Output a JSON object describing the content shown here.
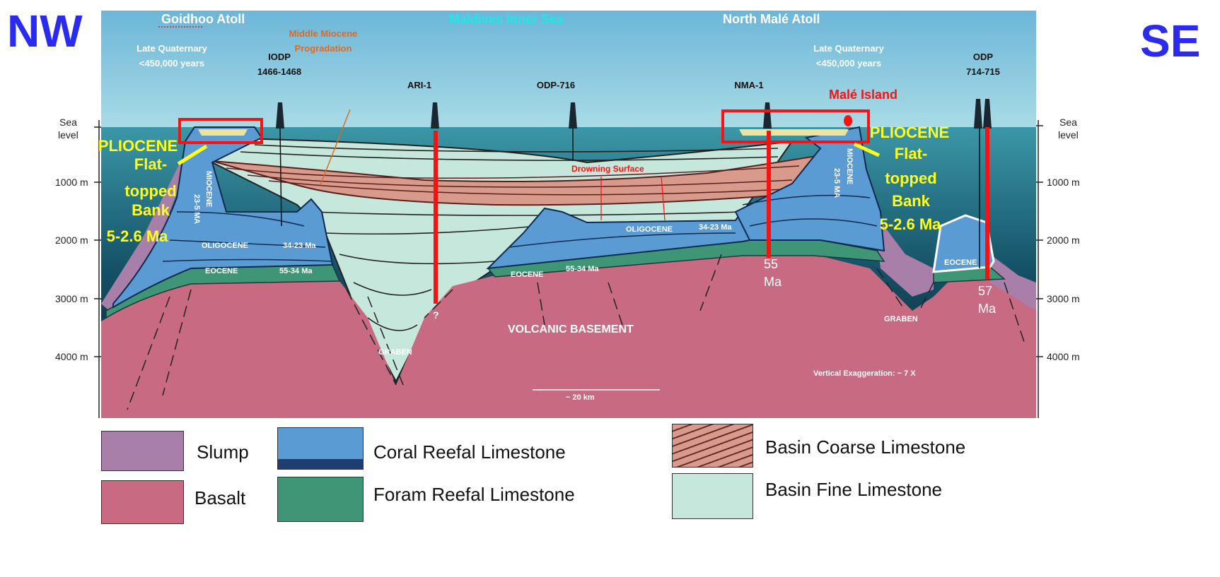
{
  "directions": {
    "left": "NW",
    "right": "SE"
  },
  "places": {
    "left_atoll": "Goidhoo Atoll",
    "inner_sea": "Maldives Inner Sea",
    "right_atoll": "North Malé Atoll",
    "island": "Malé Island"
  },
  "annotations": {
    "late_quaternary_left": [
      "Late Quaternary",
      "<450,000 years"
    ],
    "late_quaternary_right": [
      "Late Quaternary",
      "<450,000 years"
    ],
    "progradation": [
      "Middle Miocene",
      "Progradation"
    ],
    "drowning": "Drowning Surface",
    "pliocene_left": [
      "PLIOCENE",
      "Flat-",
      "topped",
      "Bank",
      "5-2.6 Ma"
    ],
    "pliocene_right": [
      "PLIOCENE",
      "Flat-",
      "topped",
      "Bank",
      "5-2.6 Ma"
    ],
    "miocene": "MIOCENE",
    "miocene_age": "23-5 MA",
    "oligocene": "OLIGOCENE",
    "oligocene_age": "34-23 Ma",
    "eocene": "EOCENE",
    "eocene_age": "55-34 Ma",
    "graben": "GRABEN",
    "basement": "VOLCANIC BASEMENT",
    "exaggeration": "Vertical Exaggeration: ~ 7 X",
    "scale": "~ 20 km",
    "question": "?",
    "age_nma": [
      "55",
      "Ma"
    ],
    "age_odp": [
      "57",
      "Ma"
    ]
  },
  "wells": [
    "IODP",
    "1466-1468",
    "ARI-1",
    "ODP-716",
    "NMA-1",
    "ODP",
    "714-715"
  ],
  "depth_axis": {
    "sea_level": [
      "Sea",
      "level"
    ],
    "ticks": [
      "1000 m",
      "2000 m",
      "3000 m",
      "4000 m"
    ]
  },
  "legend": [
    {
      "label": "Slump",
      "color": "#a77fa8"
    },
    {
      "label": "Basalt",
      "color": "#c96a83"
    },
    {
      "label": "Coral Reefal Limestone",
      "color": "#5a9bd4"
    },
    {
      "label": "Foram Reefal Limestone",
      "color": "#3f9677"
    },
    {
      "label": "Basin Coarse Limestone",
      "color": "#d89a8a"
    },
    {
      "label": "Basin Fine Limestone",
      "color": "#c6e8dc"
    }
  ],
  "colors": {
    "highlight": "#ff1010",
    "pliocene": "#ffff1a",
    "direction": "#2b2bf0",
    "inner_sea": "#1ee8e8",
    "progradation": "#e06a20"
  }
}
